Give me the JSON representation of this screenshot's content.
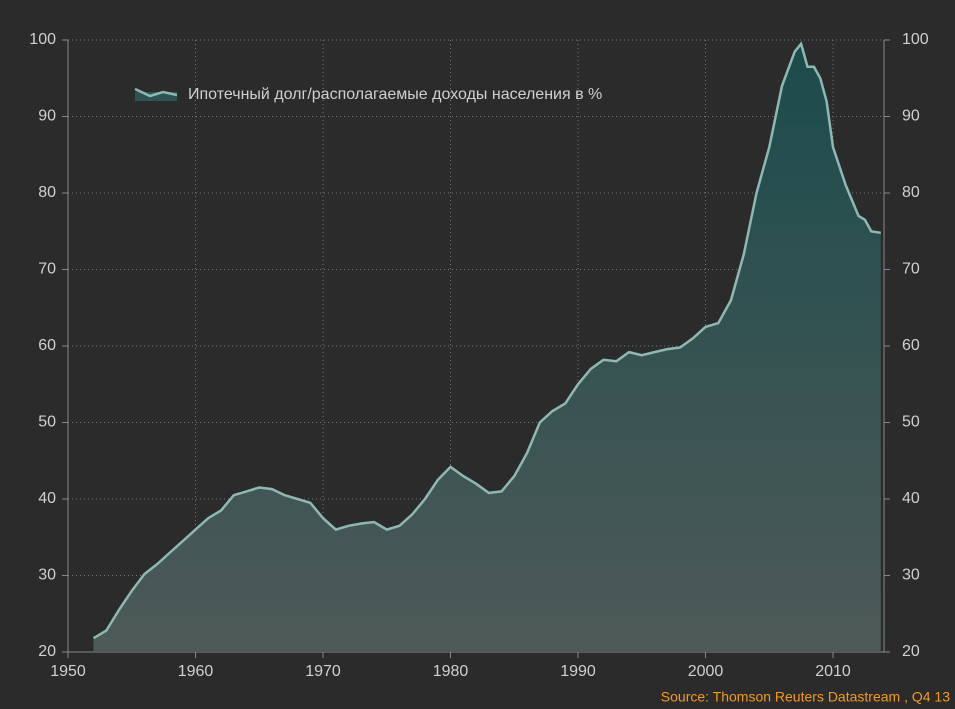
{
  "chart_data": {
    "type": "area",
    "x": [
      1952,
      1953,
      1954,
      1955,
      1956,
      1957,
      1958,
      1959,
      1960,
      1961,
      1962,
      1963,
      1964,
      1965,
      1966,
      1967,
      1968,
      1969,
      1970,
      1971,
      1972,
      1973,
      1974,
      1975,
      1976,
      1977,
      1978,
      1979,
      1980,
      1981,
      1982,
      1983,
      1984,
      1985,
      1986,
      1987,
      1988,
      1989,
      1990,
      1991,
      1992,
      1993,
      1994,
      1995,
      1996,
      1997,
      1998,
      1999,
      2000,
      2001,
      2002,
      2003,
      2004,
      2005,
      2006,
      2007,
      2007.5,
      2008,
      2008.5,
      2009,
      2009.5,
      2010,
      2011,
      2012,
      2012.5,
      2013,
      2013.75
    ],
    "series": [
      {
        "name": "Ипотечный долг/располагаемые доходы населения в %",
        "color": "#8fb8b3",
        "values": [
          21.8,
          22.8,
          25.5,
          28,
          30.2,
          31.5,
          33,
          34.5,
          36,
          37.5,
          38.5,
          40.5,
          41,
          41.5,
          41.3,
          40.5,
          40,
          39.5,
          37.5,
          36,
          36.5,
          36.8,
          37,
          36,
          36.5,
          38,
          40,
          42.5,
          44.2,
          43,
          42,
          40.8,
          41,
          43,
          46,
          50,
          51.5,
          52.5,
          55,
          57,
          58.2,
          58,
          59.2,
          58.8,
          59.2,
          59.6,
          59.8,
          61,
          62.5,
          63,
          66,
          72,
          80,
          86,
          94,
          98.5,
          99.5,
          96.5,
          96.5,
          95,
          92,
          86,
          81,
          77,
          76.5,
          75,
          74.8
        ]
      }
    ],
    "xlim": [
      1950,
      2014
    ],
    "xticks": [
      1950,
      1960,
      1970,
      1980,
      1990,
      2000,
      2010
    ],
    "ylim": [
      20,
      100
    ],
    "yticks": [
      20,
      30,
      40,
      50,
      60,
      70,
      80,
      90,
      100
    ],
    "y2lim": [
      20,
      100
    ],
    "y2ticks": [
      20,
      30,
      40,
      50,
      60,
      70,
      80,
      90,
      100
    ],
    "grid": true,
    "source": "Source: Thomson Reuters Datastream , Q4 13"
  }
}
